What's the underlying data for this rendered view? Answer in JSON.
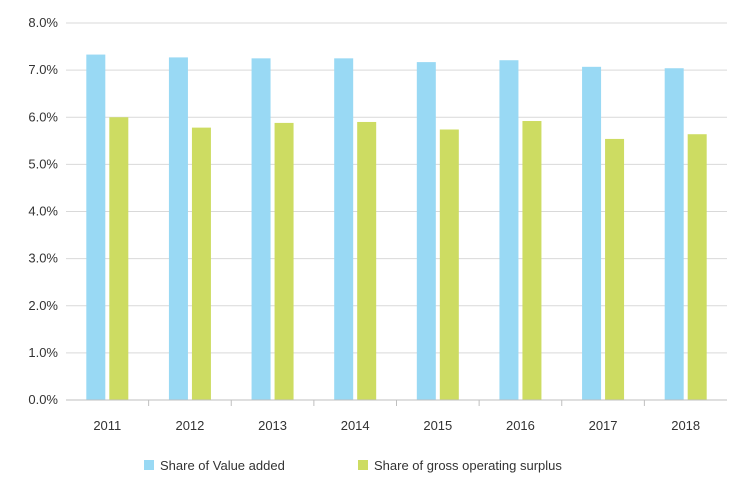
{
  "chart_data": {
    "type": "bar",
    "title": "",
    "xlabel": "",
    "ylabel": "",
    "categories": [
      "2011",
      "2012",
      "2013",
      "2014",
      "2015",
      "2016",
      "2017",
      "2018"
    ],
    "ylim": [
      0,
      8
    ],
    "yticks": [
      "0.0%",
      "1.0%",
      "2.0%",
      "3.0%",
      "4.0%",
      "5.0%",
      "6.0%",
      "7.0%",
      "8.0%"
    ],
    "series": [
      {
        "name": "Share of Value added",
        "color": "#99D9F4",
        "values": [
          7.33,
          7.27,
          7.25,
          7.25,
          7.17,
          7.21,
          7.07,
          7.04
        ]
      },
      {
        "name": "Share of gross operating surplus",
        "color": "#CDDC62",
        "values": [
          6.0,
          5.78,
          5.88,
          5.9,
          5.74,
          5.92,
          5.54,
          5.64
        ]
      }
    ],
    "grid": true,
    "legend": "bottom"
  }
}
